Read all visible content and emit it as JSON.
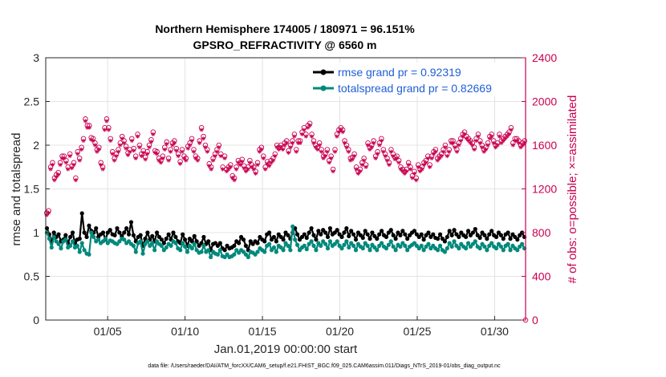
{
  "chart_data": {
    "type": "line",
    "title_line1": "Northern Hemisphere 174005 / 180971 = 96.151%",
    "title_line2": "GPSRO_REFRACTIVITY @ 6560 m",
    "xlabel": "Jan.01,2019 00:00:00 start",
    "ylabel_left": "rmse and totalspread",
    "ylabel_right": "# of obs: o=possible; ×=assimilated",
    "footnote": "data file: /Users/raeder/DAI/ATM_forcXX/CAM6_setup/f.e21.FHIST_BGC.f09_025.CAM6assim.011/Diags_NTrS_2019-01/obs_diag_output.nc",
    "xlim": [
      1,
      32
    ],
    "ylim_left": [
      0,
      3
    ],
    "ylim_right": [
      0,
      2400
    ],
    "x_ticks": [
      5,
      10,
      15,
      20,
      25,
      30
    ],
    "x_tick_labels": [
      "01/05",
      "01/10",
      "01/15",
      "01/20",
      "01/25",
      "01/30"
    ],
    "y_ticks_left": [
      0,
      0.5,
      1,
      1.5,
      2,
      2.5,
      3
    ],
    "y_tick_labels_left": [
      "0",
      "0.5",
      "1",
      "1.5",
      "2",
      "2.5",
      "3"
    ],
    "y_ticks_right": [
      0,
      400,
      800,
      1200,
      1600,
      2000,
      2400
    ],
    "y_tick_labels_right": [
      "0",
      "400",
      "800",
      "1200",
      "1600",
      "2000",
      "2400"
    ],
    "grid": true,
    "legend_position": "top-right",
    "colors": {
      "rmse": "#000000",
      "spread": "#00897b",
      "obs": "#c8004f",
      "legend_text": "#1f5fd6"
    },
    "series": [
      {
        "name": "rmse grand pr = 0.92319",
        "color": "#000000",
        "values": [
          1.05,
          0.98,
          0.9,
          1.0,
          0.95,
          0.98,
          0.9,
          0.92,
          0.97,
          0.88,
          0.95,
          1.0,
          0.88,
          0.92,
          0.93,
          1.22,
          1.0,
          0.95,
          1.08,
          1.02,
          1.0,
          1.05,
          0.95,
          0.98,
          1.0,
          0.92,
          1.0,
          1.03,
          0.98,
          0.97,
          1.05,
          1.0,
          0.96,
          1.0,
          1.05,
          0.98,
          1.12,
          0.97,
          0.9,
          0.95,
          0.97,
          0.85,
          0.93,
          1.0,
          0.92,
          0.96,
          0.9,
          1.0,
          0.95,
          0.92,
          0.88,
          0.93,
          0.98,
          0.92,
          1.0,
          0.95,
          0.9,
          0.88,
          0.98,
          0.92,
          0.85,
          0.93,
          0.9,
          0.96,
          0.9,
          0.85,
          0.88,
          0.95,
          0.87,
          0.9,
          0.8,
          0.87,
          0.88,
          0.85,
          0.88,
          0.82,
          0.8,
          0.85,
          0.82,
          0.83,
          0.85,
          0.9,
          0.88,
          0.95,
          0.92,
          0.85,
          0.8,
          0.9,
          0.87,
          0.9,
          0.88,
          0.95,
          0.92,
          0.9,
          0.98,
          1.0,
          0.92,
          0.95,
          0.9,
          0.98,
          0.95,
          0.92,
          1.0,
          0.97,
          0.93,
          1.0,
          1.05,
          0.98,
          0.92,
          0.95,
          0.98,
          0.94,
          1.0,
          1.05,
          0.97,
          0.92,
          1.02,
          0.98,
          1.03,
          1.0,
          0.95,
          1.05,
          0.98,
          1.0,
          1.03,
          0.98,
          0.95,
          1.0,
          1.05,
          0.96,
          1.02,
          0.98,
          0.92,
          1.0,
          0.97,
          0.94,
          1.02,
          0.98,
          0.93,
          1.0,
          0.96,
          0.93,
          0.98,
          1.02,
          0.97,
          0.95,
          1.0,
          1.03,
          0.97,
          0.93,
          1.0,
          0.97,
          1.02,
          0.98,
          0.93,
          0.97,
          1.0,
          1.02,
          0.98,
          0.95,
          0.98,
          0.92,
          0.97,
          1.0,
          0.95,
          0.98,
          0.94,
          0.93,
          0.98,
          0.93,
          0.9,
          0.95,
          1.02,
          0.97,
          1.03,
          0.98,
          0.95,
          1.0,
          0.97,
          0.95,
          1.02,
          0.97,
          1.0,
          1.04,
          0.97,
          0.94,
          1.0,
          0.97,
          0.93,
          0.98,
          1.02,
          0.97,
          0.95,
          1.0,
          0.97,
          0.93,
          0.98,
          1.0,
          0.93,
          0.98,
          0.95,
          0.92,
          0.97,
          1.0,
          0.95
        ]
      },
      {
        "name": "totalspread grand pr = 0.82669",
        "color": "#00897b",
        "values": [
          1.0,
          0.93,
          0.83,
          0.95,
          0.9,
          0.87,
          0.82,
          0.9,
          0.92,
          0.83,
          0.85,
          0.9,
          0.83,
          0.85,
          0.78,
          0.88,
          0.8,
          0.76,
          0.75,
          1.0,
          0.95,
          0.9,
          0.92,
          0.88,
          0.9,
          0.93,
          0.88,
          0.91,
          0.9,
          0.88,
          0.87,
          0.9,
          0.93,
          0.92,
          0.88,
          0.9,
          0.87,
          0.85,
          0.78,
          0.88,
          0.9,
          0.76,
          0.87,
          0.9,
          0.85,
          0.88,
          0.8,
          0.9,
          0.87,
          0.85,
          0.8,
          0.83,
          0.87,
          0.85,
          0.9,
          0.88,
          0.82,
          0.8,
          0.88,
          0.84,
          0.78,
          0.85,
          0.82,
          0.87,
          0.8,
          0.77,
          0.78,
          0.85,
          0.78,
          0.8,
          0.72,
          0.78,
          0.76,
          0.75,
          0.8,
          0.73,
          0.72,
          0.75,
          0.72,
          0.73,
          0.75,
          0.8,
          0.77,
          0.8,
          0.78,
          0.75,
          0.72,
          0.78,
          0.77,
          0.75,
          0.78,
          0.82,
          0.8,
          0.78,
          0.85,
          0.87,
          0.8,
          0.83,
          0.78,
          0.85,
          0.83,
          0.8,
          0.88,
          0.85,
          0.8,
          1.07,
          0.92,
          0.86,
          0.8,
          0.83,
          0.85,
          0.81,
          0.87,
          0.9,
          0.85,
          0.8,
          0.88,
          0.85,
          0.9,
          0.87,
          0.82,
          0.9,
          0.85,
          0.87,
          0.9,
          0.85,
          0.82,
          0.86,
          0.9,
          0.83,
          0.88,
          0.85,
          0.8,
          0.87,
          0.84,
          0.82,
          0.88,
          0.85,
          0.8,
          0.86,
          0.83,
          0.8,
          0.85,
          0.88,
          0.84,
          0.82,
          0.86,
          0.9,
          0.84,
          0.8,
          0.86,
          0.84,
          0.88,
          0.85,
          0.8,
          0.84,
          0.86,
          0.88,
          0.85,
          0.82,
          0.85,
          0.8,
          0.84,
          0.87,
          0.82,
          0.85,
          0.82,
          0.8,
          0.85,
          0.8,
          0.78,
          0.82,
          0.88,
          0.84,
          0.9,
          0.85,
          0.82,
          0.87,
          0.84,
          0.82,
          0.88,
          0.84,
          0.87,
          0.9,
          0.84,
          0.82,
          0.87,
          0.84,
          0.8,
          0.85,
          0.88,
          0.84,
          0.82,
          0.87,
          0.84,
          0.8,
          0.85,
          0.87,
          0.8,
          0.85,
          0.82,
          0.8,
          0.84,
          0.87,
          0.82
        ]
      },
      {
        "name": "obs possible",
        "axis": "right",
        "marker": "o",
        "color": "#c8004f",
        "values": [
          980,
          1000,
          1400,
          1440,
          1300,
          1330,
          1350,
          1440,
          1500,
          1500,
          1460,
          1400,
          1520,
          1410,
          1440,
          1300,
          1540,
          1480,
          1580,
          1660,
          1840,
          1780,
          1780,
          1670,
          1660,
          1620,
          1560,
          1580,
          1440,
          1400,
          1760,
          1840,
          1760,
          1660,
          1540,
          1480,
          1520,
          1560,
          1620,
          1680,
          1640,
          1590,
          1530,
          1560,
          1660,
          1570,
          1500,
          1700,
          1600,
          1520,
          1550,
          1490,
          1540,
          1600,
          1650,
          1720,
          1550,
          1540,
          1480,
          1460,
          1500,
          1580,
          1630,
          1480,
          1560,
          1620,
          1640,
          1570,
          1520,
          1450,
          1560,
          1500,
          1480,
          1590,
          1620,
          1660,
          1560,
          1500,
          1480,
          1640,
          1760,
          1680,
          1600,
          1560,
          1430,
          1400,
          1480,
          1520,
          1560,
          1600,
          1520,
          1400,
          1500,
          1380,
          1400,
          1420,
          1320,
          1300,
          1400,
          1460,
          1440,
          1470,
          1410,
          1380,
          1400,
          1460,
          1420,
          1400,
          1360,
          1440,
          1560,
          1580,
          1500,
          1400,
          1450,
          1430,
          1460,
          1480,
          1520,
          1600,
          1580,
          1600,
          1580,
          1620,
          1640,
          1550,
          1600,
          1640,
          1700,
          1560,
          1640,
          1640,
          1720,
          1760,
          1700,
          1780,
          1800,
          1700,
          1640,
          1600,
          1580,
          1620,
          1560,
          1500,
          1520,
          1560,
          1460,
          1500,
          1380,
          1560,
          1700,
          1740,
          1760,
          1740,
          1640,
          1600,
          1560,
          1480,
          1490,
          1520,
          1400,
          1360,
          1380,
          1440,
          1480,
          1420,
          1620,
          1580,
          1600,
          1640,
          1500,
          1540,
          1620,
          1660,
          1560,
          1520,
          1480,
          1440,
          1560,
          1520,
          1490,
          1500,
          1460,
          1400,
          1380,
          1360,
          1380,
          1440,
          1400,
          1320,
          1360,
          1300,
          1420,
          1380,
          1400,
          1440,
          1460,
          1500,
          1420,
          1500,
          1540,
          1560,
          1480,
          1500,
          1520,
          1560,
          1600,
          1520,
          1560,
          1640,
          1640,
          1600,
          1560,
          1620,
          1660,
          1700,
          1720,
          1680,
          1660,
          1640,
          1620,
          1580,
          1660,
          1700,
          1640,
          1600,
          1560,
          1580,
          1620,
          1680,
          1700,
          1640,
          1600,
          1620,
          1700,
          1640,
          1660,
          1680,
          1700,
          1720,
          1760,
          1620,
          1660,
          1660,
          1640,
          1600,
          1620,
          1640
        ]
      },
      {
        "name": "obs assimilated",
        "axis": "right",
        "marker": "x",
        "color": "#c8004f",
        "values": [
          960,
          980,
          1380,
          1420,
          1280,
          1310,
          1330,
          1420,
          1480,
          1480,
          1440,
          1380,
          1500,
          1390,
          1420,
          1280,
          1520,
          1460,
          1560,
          1640,
          1820,
          1760,
          1760,
          1650,
          1640,
          1600,
          1540,
          1560,
          1420,
          1380,
          1740,
          1820,
          1740,
          1640,
          1520,
          1460,
          1500,
          1540,
          1600,
          1660,
          1620,
          1570,
          1510,
          1540,
          1640,
          1550,
          1480,
          1680,
          1580,
          1500,
          1530,
          1470,
          1520,
          1580,
          1630,
          1700,
          1530,
          1520,
          1460,
          1440,
          1480,
          1560,
          1610,
          1460,
          1540,
          1600,
          1620,
          1550,
          1500,
          1430,
          1540,
          1480,
          1460,
          1570,
          1600,
          1640,
          1540,
          1480,
          1460,
          1620,
          1740,
          1660,
          1580,
          1540,
          1410,
          1380,
          1460,
          1500,
          1540,
          1580,
          1500,
          1380,
          1480,
          1360,
          1380,
          1400,
          1300,
          1280,
          1380,
          1440,
          1420,
          1450,
          1390,
          1360,
          1380,
          1440,
          1400,
          1380,
          1340,
          1420,
          1540,
          1560,
          1480,
          1380,
          1430,
          1410,
          1440,
          1460,
          1500,
          1580,
          1560,
          1580,
          1560,
          1600,
          1620,
          1530,
          1580,
          1620,
          1680,
          1540,
          1620,
          1620,
          1700,
          1740,
          1680,
          1760,
          1780,
          1680,
          1620,
          1580,
          1560,
          1600,
          1540,
          1480,
          1500,
          1540,
          1440,
          1480,
          1360,
          1540,
          1680,
          1720,
          1740,
          1720,
          1620,
          1580,
          1540,
          1460,
          1470,
          1500,
          1380,
          1340,
          1360,
          1420,
          1460,
          1400,
          1600,
          1560,
          1580,
          1620,
          1480,
          1520,
          1600,
          1640,
          1540,
          1500,
          1460,
          1420,
          1540,
          1500,
          1470,
          1480,
          1440,
          1380,
          1360,
          1340,
          1360,
          1420,
          1380,
          1300,
          1340,
          1280,
          1400,
          1360,
          1380,
          1420,
          1440,
          1480,
          1400,
          1480,
          1520,
          1540,
          1460,
          1480,
          1500,
          1540,
          1580,
          1500,
          1540,
          1620,
          1620,
          1580,
          1540,
          1600,
          1640,
          1680,
          1700,
          1660,
          1640,
          1620,
          1600,
          1560,
          1640,
          1680,
          1620,
          1580,
          1540,
          1560,
          1600,
          1660,
          1680,
          1620,
          1580,
          1600,
          1680,
          1620,
          1640,
          1660,
          1680,
          1700,
          1740,
          1600,
          1640,
          1640,
          1620,
          1580,
          1600,
          1620
        ]
      }
    ]
  }
}
